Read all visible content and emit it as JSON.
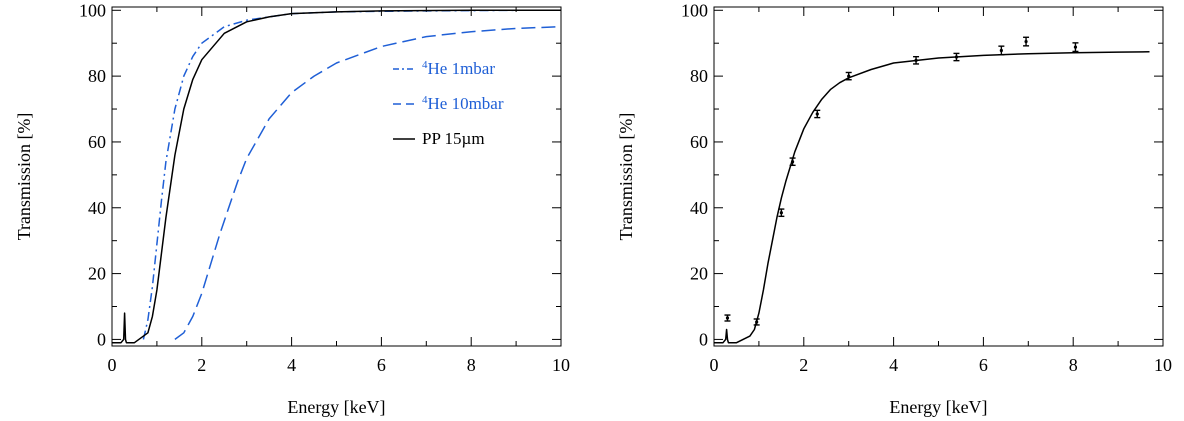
{
  "chart_data": [
    {
      "type": "line",
      "xlabel": "Energy [keV]",
      "ylabel": "Transmission [%]",
      "xlim": [
        0,
        10
      ],
      "ylim": [
        -2,
        101
      ],
      "xticks": [
        "0",
        "2",
        "4",
        "6",
        "8",
        "10"
      ],
      "yticks": [
        "0",
        "20",
        "40",
        "60",
        "80",
        "100"
      ],
      "legend_position": "right-middle",
      "series": [
        {
          "name": "⁴He 1mbar",
          "name_sup": "4",
          "name_rest": "He 1mbar",
          "style": "dash-dot",
          "color": "#1f5fd6",
          "x": [
            0.7,
            0.8,
            0.9,
            1.0,
            1.1,
            1.2,
            1.4,
            1.6,
            1.8,
            2.0,
            2.5,
            3.0,
            3.5,
            4.0,
            5.0,
            6.0,
            7.0,
            8.0,
            9.0,
            10.0
          ],
          "y": [
            0,
            6,
            16,
            29,
            42,
            54,
            70,
            80,
            86,
            90,
            95,
            97,
            98,
            99,
            99.5,
            99.7,
            99.8,
            99.9,
            100,
            100
          ]
        },
        {
          "name": "⁴He 10mbar",
          "name_sup": "4",
          "name_rest": "He 10mbar",
          "style": "dashed",
          "color": "#1f5fd6",
          "x": [
            1.4,
            1.6,
            1.8,
            2.0,
            2.2,
            2.4,
            2.6,
            2.8,
            3.0,
            3.5,
            4.0,
            4.5,
            5.0,
            6.0,
            7.0,
            8.0,
            9.0,
            10.0
          ],
          "y": [
            0,
            2,
            7,
            14,
            23,
            32,
            40,
            48,
            55,
            67,
            75,
            80,
            84,
            89,
            92,
            93.5,
            94.5,
            95
          ]
        },
        {
          "name": "PP 15µm",
          "name_sup": "",
          "name_rest": "PP 15µm",
          "style": "solid",
          "color": "#000000",
          "x": [
            0.0,
            0.2,
            0.26,
            0.28,
            0.3,
            0.32,
            0.5,
            0.8,
            0.9,
            1.0,
            1.1,
            1.2,
            1.4,
            1.6,
            1.8,
            2.0,
            2.5,
            3.0,
            3.5,
            4.0,
            5.0,
            6.0,
            8.0,
            10.0
          ],
          "y": [
            -1,
            -1,
            0,
            8,
            0,
            -1,
            -1,
            2,
            7,
            15,
            26,
            37,
            56,
            70,
            79,
            85,
            93,
            96.5,
            98,
            99,
            99.5,
            99.8,
            100,
            100
          ]
        }
      ]
    },
    {
      "type": "scatter",
      "xlabel": "Energy [keV]",
      "ylabel": "Transmission [%]",
      "xlim": [
        0,
        10
      ],
      "ylim": [
        -2,
        101
      ],
      "xticks": [
        "0",
        "2",
        "4",
        "6",
        "8",
        "10"
      ],
      "yticks": [
        "0",
        "20",
        "40",
        "60",
        "80",
        "100"
      ],
      "points": [
        {
          "x": 0.3,
          "y": 6.5,
          "err": 0.6
        },
        {
          "x": 0.95,
          "y": 5.3,
          "err": 0.6
        },
        {
          "x": 1.5,
          "y": 38.5,
          "err": 0.8
        },
        {
          "x": 1.75,
          "y": 54,
          "err": 0.8
        },
        {
          "x": 2.3,
          "y": 68.5,
          "err": 0.8
        },
        {
          "x": 3.0,
          "y": 80,
          "err": 0.8
        },
        {
          "x": 4.5,
          "y": 84.8,
          "err": 0.8
        },
        {
          "x": 5.4,
          "y": 85.8,
          "err": 0.8
        },
        {
          "x": 6.4,
          "y": 87.8,
          "err": 1.0
        },
        {
          "x": 6.95,
          "y": 90.5,
          "err": 1.0
        },
        {
          "x": 8.05,
          "y": 88.8,
          "err": 1.0
        }
      ],
      "fit_curve": {
        "style": "solid",
        "color": "#000000",
        "x": [
          0.0,
          0.2,
          0.26,
          0.28,
          0.3,
          0.32,
          0.5,
          0.8,
          0.9,
          1.0,
          1.1,
          1.2,
          1.3,
          1.4,
          1.5,
          1.6,
          1.8,
          2.0,
          2.2,
          2.4,
          2.6,
          2.8,
          3.0,
          3.5,
          4.0,
          5.0,
          6.0,
          7.0,
          8.0,
          9.0,
          9.7
        ],
        "y": [
          -1,
          -1,
          0,
          3,
          0,
          -1,
          -1,
          1,
          3,
          8,
          15,
          23,
          30,
          37,
          43,
          48,
          57,
          64,
          69,
          73,
          76,
          78,
          79.5,
          82,
          84,
          85.5,
          86.3,
          86.8,
          87.1,
          87.3,
          87.4
        ]
      }
    }
  ]
}
